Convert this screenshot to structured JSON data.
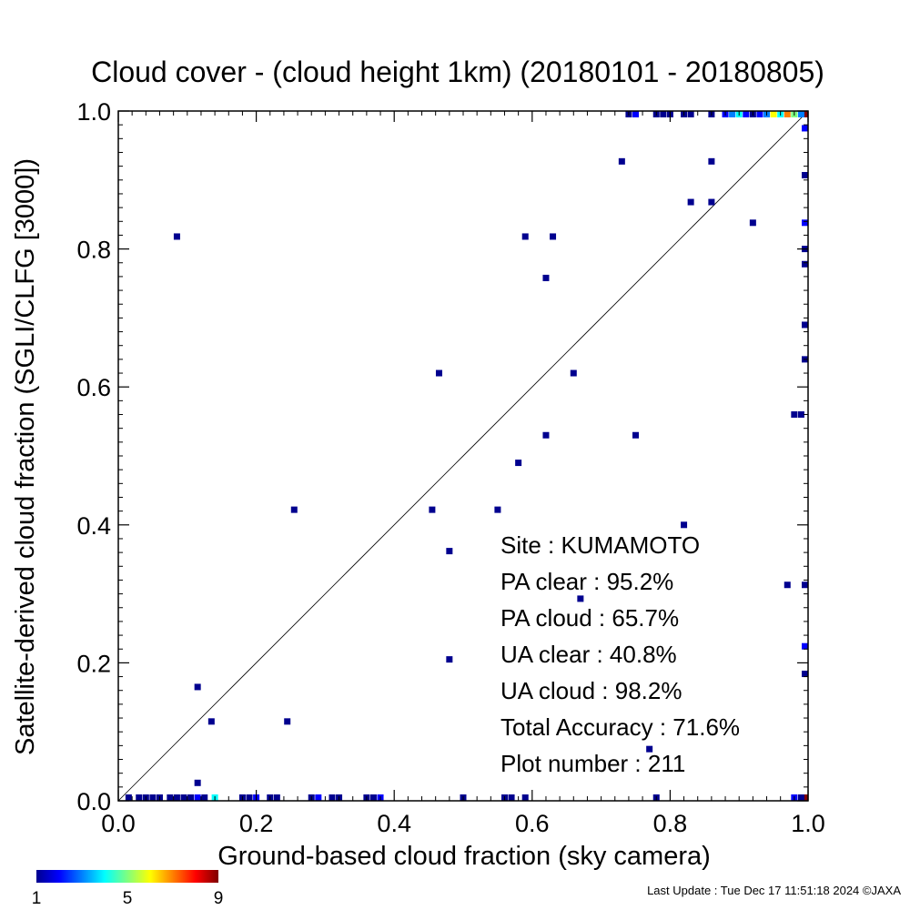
{
  "chart_data": {
    "type": "scatter",
    "title": "Cloud cover - (cloud height 1km)  (20180101 - 20180805)",
    "xlabel": "Ground-based cloud fraction (sky camera)",
    "ylabel": "Satellite-derived cloud fraction (SGLI/CLFG [3000])",
    "xlim": [
      0.0,
      1.0
    ],
    "ylim": [
      0.0,
      1.0
    ],
    "x_ticks": [
      0.0,
      0.2,
      0.4,
      0.6,
      0.8,
      1.0
    ],
    "y_ticks": [
      0.0,
      0.2,
      0.4,
      0.6,
      0.8,
      1.0
    ],
    "x_tick_labels": [
      "0.0",
      "0.2",
      "0.4",
      "0.6",
      "0.8",
      "1.0"
    ],
    "y_tick_labels": [
      "0.0",
      "0.2",
      "0.4",
      "0.6",
      "0.8",
      "1.0"
    ],
    "diagonal_line": true,
    "grid": false,
    "stats": [
      "Site : KUMAMOTO",
      "PA clear :  95.2%",
      "PA cloud :  65.7%",
      "UA clear :  40.8%",
      "UA cloud :  98.2%",
      "Total Accuracy :  71.6%",
      "Plot number :       211"
    ],
    "colorbar": {
      "min_label": "1",
      "mid_label": "5",
      "max_label": "9",
      "min": 1,
      "max": 9,
      "colors": [
        "#00008f",
        "#0000ff",
        "#007fff",
        "#00ffff",
        "#7fff7f",
        "#ffff00",
        "#ff7f00",
        "#ff0000",
        "#7f0000"
      ]
    },
    "points": [
      {
        "x": 0.085,
        "y": 0.818,
        "count": 1
      },
      {
        "x": 0.115,
        "y": 0.165,
        "count": 1
      },
      {
        "x": 0.135,
        "y": 0.115,
        "count": 1
      },
      {
        "x": 0.115,
        "y": 0.026,
        "count": 1
      },
      {
        "x": 0.245,
        "y": 0.115,
        "count": 1
      },
      {
        "x": 0.255,
        "y": 0.422,
        "count": 1
      },
      {
        "x": 0.455,
        "y": 0.422,
        "count": 1
      },
      {
        "x": 0.465,
        "y": 0.62,
        "count": 1
      },
      {
        "x": 0.48,
        "y": 0.362,
        "count": 1
      },
      {
        "x": 0.48,
        "y": 0.205,
        "count": 1
      },
      {
        "x": 0.55,
        "y": 0.422,
        "count": 1
      },
      {
        "x": 0.58,
        "y": 0.49,
        "count": 1
      },
      {
        "x": 0.59,
        "y": 0.818,
        "count": 1
      },
      {
        "x": 0.62,
        "y": 0.758,
        "count": 1
      },
      {
        "x": 0.63,
        "y": 0.818,
        "count": 1
      },
      {
        "x": 0.62,
        "y": 0.53,
        "count": 1
      },
      {
        "x": 0.66,
        "y": 0.62,
        "count": 1
      },
      {
        "x": 0.67,
        "y": 0.293,
        "count": 1
      },
      {
        "x": 0.73,
        "y": 0.927,
        "count": 1
      },
      {
        "x": 0.75,
        "y": 0.53,
        "count": 1
      },
      {
        "x": 0.77,
        "y": 0.075,
        "count": 1
      },
      {
        "x": 0.82,
        "y": 0.4,
        "count": 1
      },
      {
        "x": 0.83,
        "y": 0.868,
        "count": 1
      },
      {
        "x": 0.86,
        "y": 0.927,
        "count": 1
      },
      {
        "x": 0.86,
        "y": 0.868,
        "count": 1
      },
      {
        "x": 0.92,
        "y": 0.838,
        "count": 1
      },
      {
        "x": 0.97,
        "y": 0.313,
        "count": 1
      },
      {
        "x": 0.98,
        "y": 0.56,
        "count": 1
      },
      {
        "x": 0.99,
        "y": 0.56,
        "count": 1
      },
      {
        "x": 1.0,
        "y": 0.975,
        "count": 2
      },
      {
        "x": 1.0,
        "y": 0.907,
        "count": 1
      },
      {
        "x": 1.0,
        "y": 0.838,
        "count": 2
      },
      {
        "x": 1.0,
        "y": 0.8,
        "count": 1
      },
      {
        "x": 1.0,
        "y": 0.778,
        "count": 1
      },
      {
        "x": 1.0,
        "y": 0.69,
        "count": 1
      },
      {
        "x": 1.0,
        "y": 0.64,
        "count": 1
      },
      {
        "x": 1.0,
        "y": 0.313,
        "count": 1
      },
      {
        "x": 1.0,
        "y": 0.224,
        "count": 2
      },
      {
        "x": 1.0,
        "y": 0.184,
        "count": 1
      },
      {
        "x": 1.0,
        "y": 1.0,
        "count": 9
      },
      {
        "x": 1.0,
        "y": 0.0,
        "count": 9
      },
      {
        "x": 0.98,
        "y": 0.0,
        "count": 2
      },
      {
        "x": 0.99,
        "y": 0.0,
        "count": 1
      },
      {
        "x": 0.74,
        "y": 1.0,
        "count": 1
      },
      {
        "x": 0.75,
        "y": 1.0,
        "count": 2
      },
      {
        "x": 0.78,
        "y": 1.0,
        "count": 1
      },
      {
        "x": 0.79,
        "y": 1.0,
        "count": 1
      },
      {
        "x": 0.8,
        "y": 1.0,
        "count": 1
      },
      {
        "x": 0.82,
        "y": 1.0,
        "count": 1
      },
      {
        "x": 0.83,
        "y": 1.0,
        "count": 1
      },
      {
        "x": 0.86,
        "y": 1.0,
        "count": 1
      },
      {
        "x": 0.88,
        "y": 1.0,
        "count": 2
      },
      {
        "x": 0.89,
        "y": 1.0,
        "count": 3
      },
      {
        "x": 0.9,
        "y": 1.0,
        "count": 4
      },
      {
        "x": 0.91,
        "y": 1.0,
        "count": 2
      },
      {
        "x": 0.92,
        "y": 1.0,
        "count": 1
      },
      {
        "x": 0.93,
        "y": 1.0,
        "count": 2
      },
      {
        "x": 0.94,
        "y": 1.0,
        "count": 3
      },
      {
        "x": 0.95,
        "y": 1.0,
        "count": 6
      },
      {
        "x": 0.96,
        "y": 1.0,
        "count": 4
      },
      {
        "x": 0.97,
        "y": 1.0,
        "count": 7
      },
      {
        "x": 0.98,
        "y": 1.0,
        "count": 5
      },
      {
        "x": 0.99,
        "y": 1.0,
        "count": 3
      },
      {
        "x": 0.015,
        "y": 0.0,
        "count": 1
      },
      {
        "x": 0.03,
        "y": 0.0,
        "count": 1
      },
      {
        "x": 0.04,
        "y": 0.0,
        "count": 1
      },
      {
        "x": 0.05,
        "y": 0.0,
        "count": 1
      },
      {
        "x": 0.06,
        "y": 0.0,
        "count": 1
      },
      {
        "x": 0.075,
        "y": 0.0,
        "count": 1
      },
      {
        "x": 0.085,
        "y": 0.0,
        "count": 1
      },
      {
        "x": 0.095,
        "y": 0.0,
        "count": 1
      },
      {
        "x": 0.105,
        "y": 0.0,
        "count": 1
      },
      {
        "x": 0.115,
        "y": 0.0,
        "count": 2
      },
      {
        "x": 0.125,
        "y": 0.0,
        "count": 1
      },
      {
        "x": 0.14,
        "y": 0.0,
        "count": 4
      },
      {
        "x": 0.18,
        "y": 0.0,
        "count": 1
      },
      {
        "x": 0.19,
        "y": 0.0,
        "count": 1
      },
      {
        "x": 0.2,
        "y": 0.0,
        "count": 2
      },
      {
        "x": 0.22,
        "y": 0.0,
        "count": 1
      },
      {
        "x": 0.23,
        "y": 0.0,
        "count": 1
      },
      {
        "x": 0.28,
        "y": 0.0,
        "count": 1
      },
      {
        "x": 0.29,
        "y": 0.0,
        "count": 2
      },
      {
        "x": 0.31,
        "y": 0.0,
        "count": 1
      },
      {
        "x": 0.32,
        "y": 0.0,
        "count": 1
      },
      {
        "x": 0.36,
        "y": 0.0,
        "count": 1
      },
      {
        "x": 0.37,
        "y": 0.0,
        "count": 1
      },
      {
        "x": 0.38,
        "y": 0.0,
        "count": 2
      },
      {
        "x": 0.5,
        "y": 0.0,
        "count": 1
      },
      {
        "x": 0.56,
        "y": 0.0,
        "count": 1
      },
      {
        "x": 0.57,
        "y": 0.0,
        "count": 1
      },
      {
        "x": 0.59,
        "y": 0.0,
        "count": 1
      },
      {
        "x": 0.78,
        "y": 0.0,
        "count": 1
      }
    ]
  },
  "footer": {
    "last_update": "Last Update : Tue Dec 17 11:51:18 2024  ©JAXA"
  }
}
